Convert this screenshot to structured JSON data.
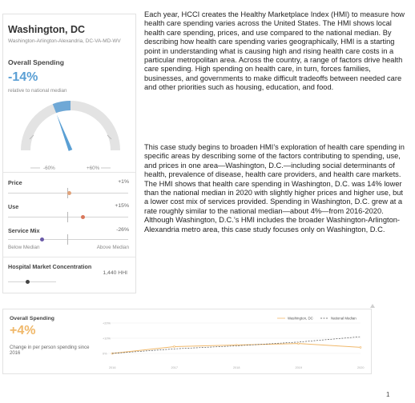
{
  "card": {
    "city": "Washington, DC",
    "metro": "Washington-Arlington-Alexandria, DC-VA-MD-WV",
    "overall_label": "Overall Spending",
    "overall_value": "-14%",
    "relative": "relative to national median",
    "gauge": {
      "left_label": "-60%",
      "right_label": "+60%",
      "value": -14
    },
    "metrics": [
      {
        "label": "Price",
        "value": "+1%",
        "level": 1,
        "color": "#e0a27a"
      },
      {
        "label": "Use",
        "value": "+15%",
        "level": 15,
        "color": "#d9775a"
      },
      {
        "label": "Service Mix",
        "value": "-26%",
        "level": -26,
        "color": "#6a5aa8"
      }
    ],
    "below_label": "Below Median",
    "above_label": "Above Median",
    "hhi": {
      "label": "Hospital Market Concentration",
      "value": "1,440 HHI"
    }
  },
  "body": {
    "p1": "Each year, HCCI creates the Healthy Marketplace Index (HMI) to measure how health care spending varies across the United States. The HMI shows local health care spending, prices, and use compared to the national median. By describing how health care spending varies geographically, HMI is a starting point in understanding what is causing high and rising health care costs in a particular metropolitan area. Across the country, a range of factors drive health care spending. High spending on health care, in turn, forces families, businesses, and governments to make difficult tradeoffs between needed care and other priorities such as housing, education, and food.",
    "p2": "This case study begins to broaden HMI’s exploration of health care spending in specific areas by describing some of the factors contributing to spending, use, and prices in one area—Washington, D.C.—including social determinants of health, prevalence of disease, health care providers, and health care markets. The HMI shows that health care spending in Washington, D.C. was 14% lower than the national median in 2020 with slightly higher prices and higher use, but a lower cost mix of services provided. Spending in Washington, D.C. grew at a rate roughly similar to the national median—about 4%—from 2016-2020. Although Washington, D.C.’s HMI includes the broader Washington-Arlington-Alexandria metro area, this case study focuses only on Washington, D.C."
  },
  "bottom": {
    "title": "Overall Spending",
    "value": "+4%",
    "subtitle": "Change in per person spending since 2016"
  },
  "chart_data": {
    "type": "line",
    "x": [
      "2016",
      "2017",
      "2018",
      "2019",
      "2020"
    ],
    "y_ticks": [
      "+20%",
      "+10%",
      "0%"
    ],
    "ylim": [
      0,
      20
    ],
    "series": [
      {
        "name": "Washington, DC",
        "values": [
          0,
          4.5,
          5.5,
          6.5,
          4
        ],
        "color": "#f0b86a",
        "style": "solid"
      },
      {
        "name": "National Median",
        "values": [
          0,
          3,
          5,
          7.5,
          11
        ],
        "color": "#555555",
        "style": "dashed"
      }
    ],
    "legend": "top-right"
  },
  "page_number": "1"
}
